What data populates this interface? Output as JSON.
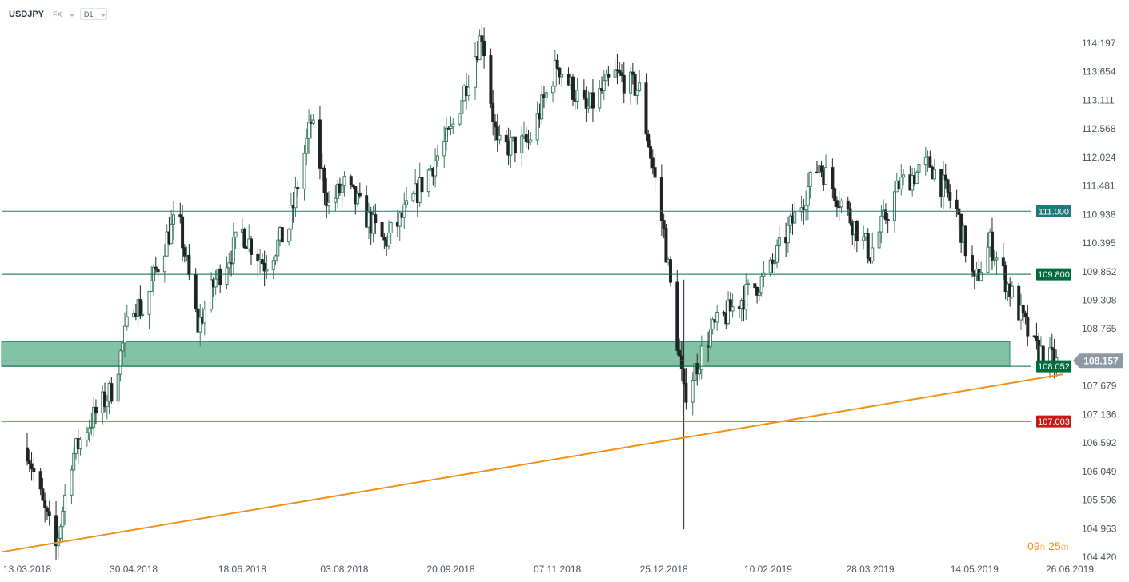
{
  "header": {
    "symbol": "USDJPY",
    "market": "FX",
    "timeframe": "D1"
  },
  "colors": {
    "bull": "#3a7d5e",
    "bear": "#1f2428",
    "zone_fill": "#82c3a6",
    "trendline": "#f39019",
    "level_line": "#1d7a78",
    "resistance_low": "#c61b1b",
    "price_tag": "#8e9aa3"
  },
  "chart_data": {
    "type": "candlestick",
    "y_ticks": [
      "114.197",
      "113.654",
      "113.111",
      "112.568",
      "112.024",
      "111.481",
      "110.938",
      "110.395",
      "109.852",
      "109.308",
      "108.765",
      "107.679",
      "107.136",
      "106.592",
      "106.049",
      "105.506",
      "104.963",
      "104.420"
    ],
    "x_ticks": [
      "13.03.2018",
      "30.04.2018",
      "18.06.2018",
      "03.08.2018",
      "20.09.2018",
      "07.11.2018",
      "25.12.2018",
      "10.02.2019",
      "28.03.2019",
      "14.05.2019",
      "26.06.2019"
    ],
    "ylim": [
      104.42,
      114.74
    ],
    "levels": [
      {
        "value": 111.0,
        "label": "111.000",
        "color": "#1d7a78"
      },
      {
        "value": 109.8,
        "label": "109.800",
        "color": "#006b3c"
      },
      {
        "value": 108.052,
        "label": "108.052",
        "color": "#006b3c"
      },
      {
        "value": 107.003,
        "label": "107.003",
        "color": "#c61b1b"
      }
    ],
    "zone": {
      "from": 108.052,
      "to": 108.52
    },
    "trendline": {
      "from": {
        "date": "13.03.2018",
        "price": 104.55
      },
      "to": {
        "date": "20.06.2019",
        "price": 107.9
      }
    },
    "current_price": "108.157",
    "waypoints": [
      [
        "13.03.2018",
        106.5
      ],
      [
        "20.03.2018",
        105.4
      ],
      [
        "26.03.2018",
        104.6
      ],
      [
        "02.04.2018",
        106.3
      ],
      [
        "09.04.2018",
        106.9
      ],
      [
        "20.04.2018",
        107.6
      ],
      [
        "30.04.2018",
        109.3
      ],
      [
        "04.05.2018",
        109.1
      ],
      [
        "15.05.2018",
        110.5
      ],
      [
        "20.05.2018",
        110.9
      ],
      [
        "29.05.2018",
        108.8
      ],
      [
        "06.06.2018",
        109.7
      ],
      [
        "18.06.2018",
        110.6
      ],
      [
        "28.06.2018",
        110.0
      ],
      [
        "09.07.2018",
        110.7
      ],
      [
        "19.07.2018",
        112.7
      ],
      [
        "27.07.2018",
        111.1
      ],
      [
        "03.08.2018",
        111.5
      ],
      [
        "21.08.2018",
        110.4
      ],
      [
        "31.08.2018",
        111.0
      ],
      [
        "20.09.2018",
        112.5
      ],
      [
        "04.10.2018",
        114.4
      ],
      [
        "11.10.2018",
        112.2
      ],
      [
        "25.10.2018",
        112.3
      ],
      [
        "07.11.2018",
        113.8
      ],
      [
        "20.11.2018",
        112.9
      ],
      [
        "03.12.2018",
        113.6
      ],
      [
        "14.12.2018",
        113.3
      ],
      [
        "25.12.2018",
        110.6
      ],
      [
        "03.01.2019",
        107.5
      ],
      [
        "15.01.2019",
        108.7
      ],
      [
        "28.01.2019",
        109.3
      ],
      [
        "10.02.2019",
        109.8
      ],
      [
        "05.03.2019",
        111.9
      ],
      [
        "20.03.2019",
        110.8
      ],
      [
        "28.03.2019",
        110.2
      ],
      [
        "10.04.2019",
        111.5
      ],
      [
        "24.04.2019",
        111.9
      ],
      [
        "06.05.2019",
        111.0
      ],
      [
        "14.05.2019",
        109.6
      ],
      [
        "21.05.2019",
        110.4
      ],
      [
        "31.05.2019",
        109.4
      ],
      [
        "10.06.2019",
        108.4
      ],
      [
        "20.06.2019",
        108.1
      ]
    ]
  },
  "timer": {
    "hours": "09",
    "hours_unit": "h",
    "minutes": "25",
    "minutes_unit": "m"
  }
}
